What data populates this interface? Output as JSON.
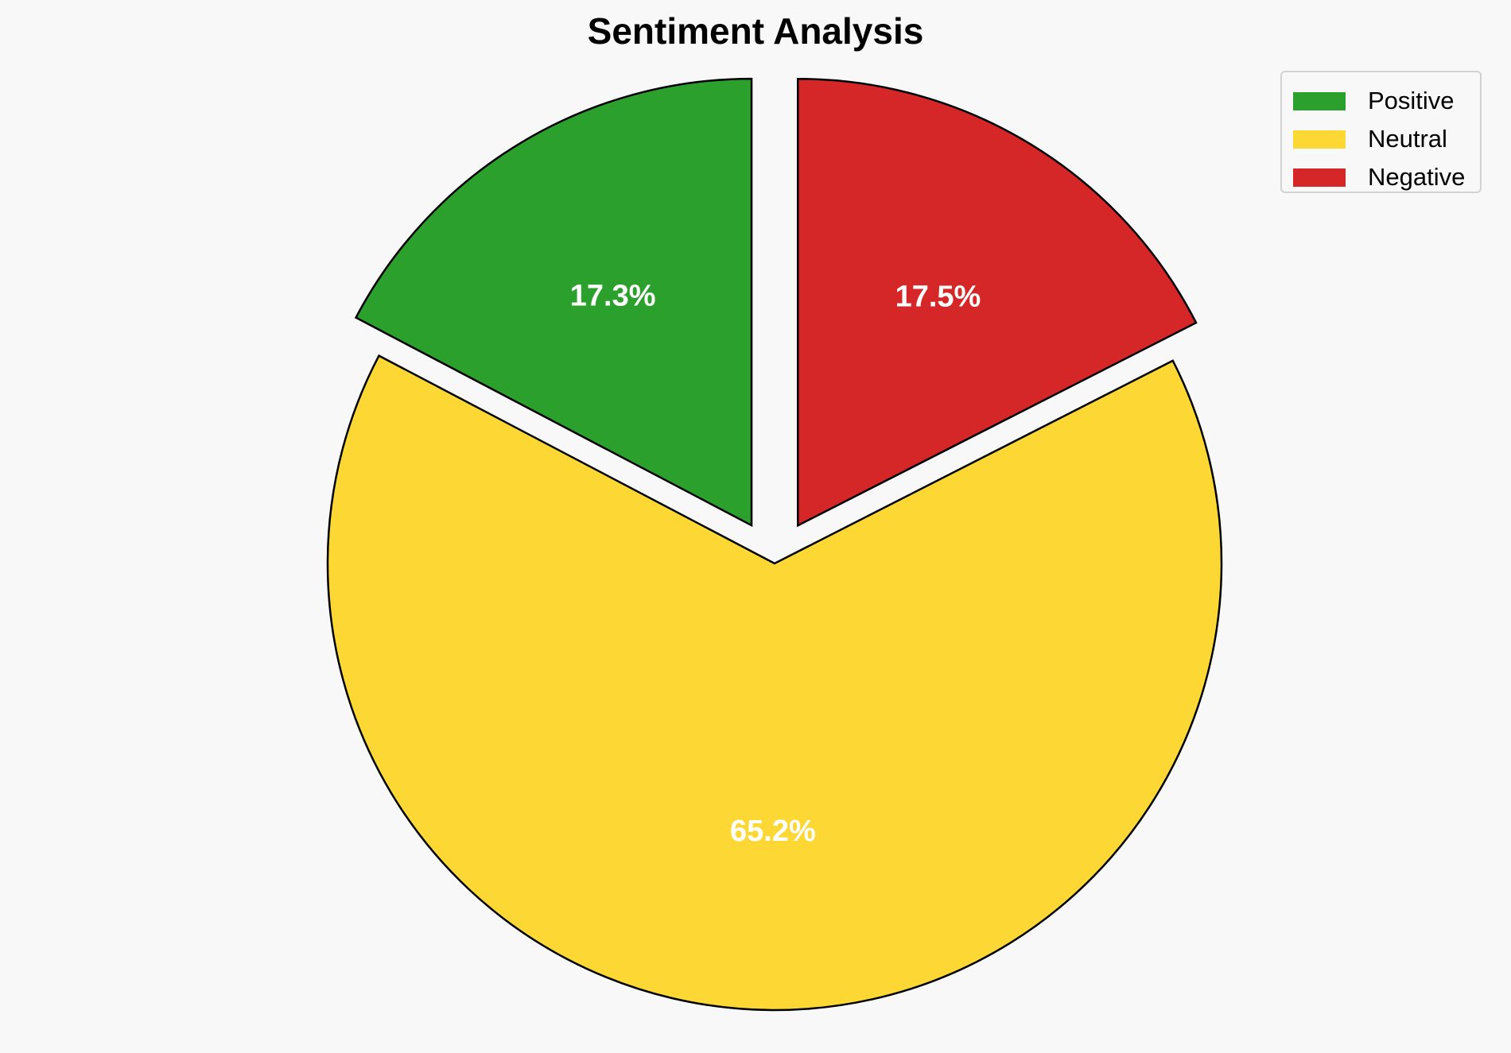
{
  "chart_data": {
    "type": "pie",
    "title": "Sentiment Analysis",
    "slices": [
      {
        "name": "Positive",
        "value": 17.3,
        "label": "17.3%",
        "color": "#2ca02c",
        "exploded": true
      },
      {
        "name": "Neutral",
        "value": 65.2,
        "label": "65.2%",
        "color": "#fdd835",
        "exploded": false
      },
      {
        "name": "Negative",
        "value": 17.5,
        "label": "17.5%",
        "color": "#d62728",
        "exploded": true
      }
    ],
    "legend_position": "top-right",
    "edge_color": "#000000"
  }
}
